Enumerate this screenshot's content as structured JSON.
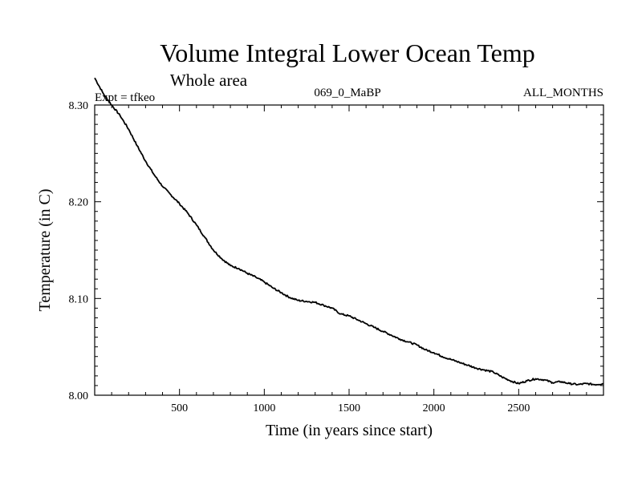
{
  "chart_data": {
    "type": "line",
    "title": "Volume Integral Lower Ocean Temp",
    "subtitle": "Whole area",
    "info_left": "Expt = tfkeo",
    "info_center": "069_0_MaBP",
    "info_right": "ALL_MONTHS",
    "xlabel": "Time (in years since start)",
    "ylabel": "Temperature (in C)",
    "xlim": [
      0,
      3000
    ],
    "ylim": [
      8.0,
      8.3
    ],
    "xticks": [
      500,
      1000,
      1500,
      2000,
      2500
    ],
    "xtick_labels": [
      "500",
      "1000",
      "1500",
      "2000",
      "2500"
    ],
    "yticks": [
      8.0,
      8.1,
      8.2,
      8.3
    ],
    "ytick_labels": [
      "8.00",
      "8.10",
      "8.20",
      "8.30"
    ],
    "grid": false,
    "series": [
      {
        "color": "#000000",
        "x": [
          0,
          50,
          100,
          150,
          200,
          250,
          300,
          350,
          400,
          450,
          500,
          550,
          600,
          650,
          700,
          750,
          800,
          850,
          900,
          950,
          1000,
          1050,
          1100,
          1150,
          1200,
          1250,
          1300,
          1350,
          1400,
          1450,
          1500,
          1550,
          1600,
          1650,
          1700,
          1750,
          1800,
          1850,
          1900,
          1950,
          2000,
          2050,
          2100,
          2150,
          2200,
          2250,
          2300,
          2350,
          2400,
          2450,
          2500,
          2550,
          2600,
          2650,
          2700,
          2750,
          2800,
          2850,
          2900,
          2950,
          3000
        ],
        "y": [
          8.328,
          8.312,
          8.3,
          8.289,
          8.275,
          8.258,
          8.242,
          8.228,
          8.216,
          8.207,
          8.198,
          8.188,
          8.176,
          8.163,
          8.15,
          8.141,
          8.134,
          8.131,
          8.126,
          8.122,
          8.117,
          8.111,
          8.106,
          8.101,
          8.098,
          8.097,
          8.096,
          8.093,
          8.09,
          8.084,
          8.082,
          8.078,
          8.074,
          8.07,
          8.066,
          8.062,
          8.058,
          8.055,
          8.052,
          8.047,
          8.044,
          8.04,
          8.037,
          8.034,
          8.031,
          8.028,
          8.026,
          8.024,
          8.019,
          8.015,
          8.012,
          8.015,
          8.017,
          8.016,
          8.013,
          8.014,
          8.012,
          8.011,
          8.012,
          8.011,
          8.012
        ]
      }
    ]
  }
}
